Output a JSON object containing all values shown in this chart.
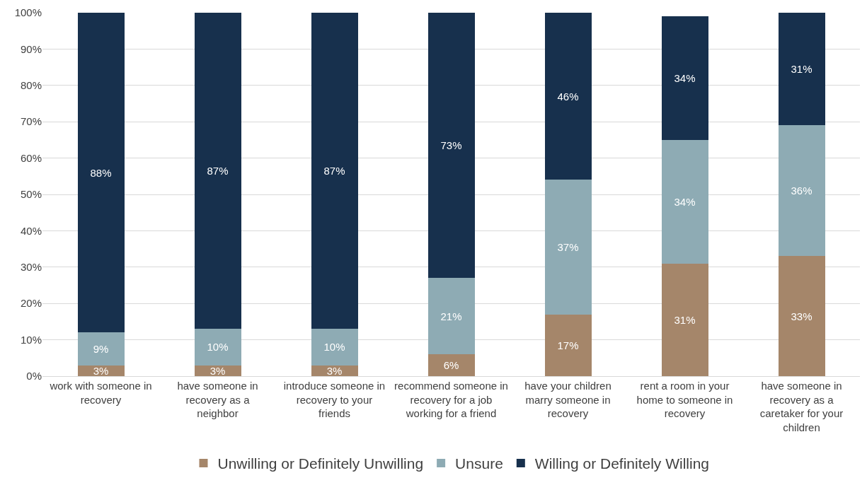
{
  "chart_data": {
    "type": "bar",
    "stacked": true,
    "grid": "y",
    "legend": "bottom",
    "categories": [
      "work with someone in recovery",
      "have someone in recovery as a neighbor",
      "introduce someone in recovery to your friends",
      "recommend someone in recovery for a job working for a friend",
      "have your children marry someone in recovery",
      "rent a room in your home to someone in recovery",
      "have someone in recovery as a caretaker for your children"
    ],
    "series": [
      {
        "name": "Unwilling or Definitely Unwilling",
        "color": "#a5866a",
        "values": [
          3,
          3,
          3,
          6,
          17,
          31,
          33
        ],
        "value_labels": [
          "3%",
          "3%",
          "3%",
          "6%",
          "17%",
          "31%",
          "33%"
        ]
      },
      {
        "name": "Unsure",
        "color": "#8eabb4",
        "values": [
          9,
          10,
          10,
          21,
          37,
          34,
          36
        ],
        "value_labels": [
          "9%",
          "10%",
          "10%",
          "21%",
          "37%",
          "34%",
          "36%"
        ]
      },
      {
        "name": "Willing or Definitely Willing",
        "color": "#17304d",
        "values": [
          88,
          87,
          87,
          73,
          46,
          34,
          31
        ],
        "value_labels": [
          "88%",
          "87%",
          "87%",
          "73%",
          "46%",
          "34%",
          "31%"
        ]
      }
    ],
    "ylim": [
      0,
      100
    ],
    "yticks": [
      {
        "value": 0,
        "label": "0%"
      },
      {
        "value": 10,
        "label": "10%"
      },
      {
        "value": 20,
        "label": "20%"
      },
      {
        "value": 30,
        "label": "30%"
      },
      {
        "value": 40,
        "label": "40%"
      },
      {
        "value": 50,
        "label": "50%"
      },
      {
        "value": 60,
        "label": "60%"
      },
      {
        "value": 70,
        "label": "70%"
      },
      {
        "value": 80,
        "label": "80%"
      },
      {
        "value": 90,
        "label": "90%"
      },
      {
        "value": 100,
        "label": "100%"
      }
    ]
  }
}
